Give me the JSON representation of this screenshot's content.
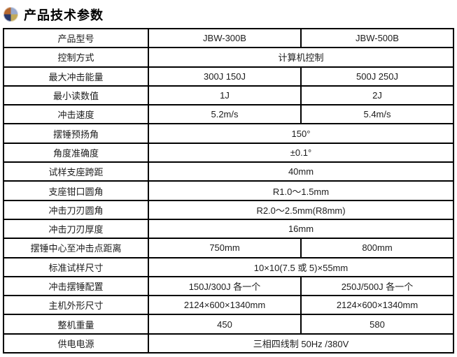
{
  "header": {
    "title": "产品技术参数",
    "icon": "pie-chart-icon",
    "icon_colors": {
      "top_left": "#b4672f",
      "top_right": "#98a9cd",
      "bottom_left": "#28386c",
      "bottom_right": "#c2aa5a"
    }
  },
  "colors": {
    "table_border": "#000000",
    "text": "#1c1c1c",
    "background": "#ffffff"
  },
  "table": {
    "models": [
      "JBW-300B",
      "JBW-500B"
    ],
    "rows": [
      {
        "label": "产品型号",
        "values": [
          "JBW-300B",
          "JBW-500B"
        ]
      },
      {
        "label": "控制方式",
        "values": [
          "计算机控制"
        ]
      },
      {
        "label": "最大冲击能量",
        "values": [
          "300J 150J",
          "500J 250J"
        ]
      },
      {
        "label": "最小读数值",
        "values": [
          "1J",
          "2J"
        ]
      },
      {
        "label": "冲击速度",
        "values": [
          "5.2m/s",
          "5.4m/s"
        ]
      },
      {
        "label": "摆锤预扬角",
        "values": [
          "150°"
        ]
      },
      {
        "label": "角度准确度",
        "values": [
          "±0.1°"
        ]
      },
      {
        "label": "试样支座跨距",
        "values": [
          "40mm"
        ]
      },
      {
        "label": "支座钳口圆角",
        "values": [
          "R1.0～1.5mm"
        ]
      },
      {
        "label": "冲击刀刃圆角",
        "values": [
          "R2.0～2.5mm(R8mm)"
        ]
      },
      {
        "label": "冲击刀刃厚度",
        "values": [
          "16mm"
        ]
      },
      {
        "label": "摆锤中心至冲击点距离",
        "values": [
          "750mm",
          "800mm"
        ]
      },
      {
        "label": "标准试样尺寸",
        "values": [
          "10×10(7.5 或 5)×55mm"
        ]
      },
      {
        "label": "冲击摆锤配置",
        "values": [
          "150J/300J 各一个",
          "250J/500J 各一个"
        ]
      },
      {
        "label": "主机外形尺寸",
        "values": [
          "2124×600×1340mm",
          "2124×600×1340mm"
        ]
      },
      {
        "label": "整机重量",
        "values": [
          "450",
          "580"
        ]
      },
      {
        "label": "供电电源",
        "values": [
          "三相四线制 50Hz /380V"
        ]
      }
    ]
  }
}
